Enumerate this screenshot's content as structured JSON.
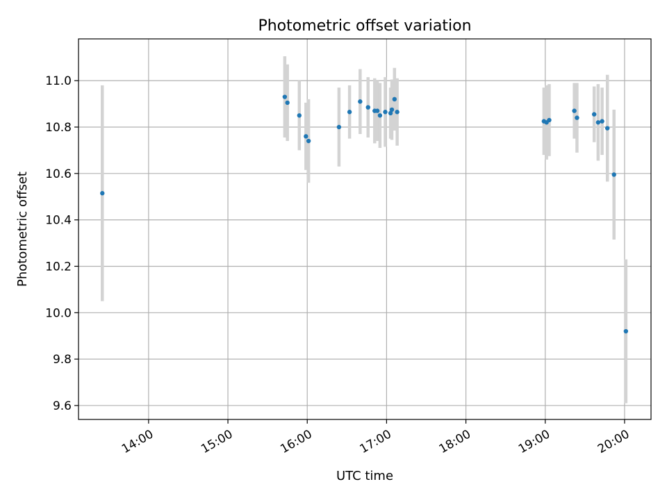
{
  "chart_data": {
    "type": "scatter",
    "title": "Photometric offset variation",
    "xlabel": "UTC time",
    "ylabel": "Photometric offset",
    "x_ticks": [
      "14:00",
      "15:00",
      "16:00",
      "17:00",
      "18:00",
      "19:00",
      "20:00"
    ],
    "y_ticks": [
      "9.6",
      "9.8",
      "10.0",
      "10.2",
      "10.4",
      "10.6",
      "10.8",
      "11.0"
    ],
    "xlim": [
      "13:07",
      "20:20"
    ],
    "ylim": [
      9.54,
      11.18
    ],
    "grid": true,
    "point_color": "#1f77b4",
    "errorbar_color": "#d3d3d3",
    "points": [
      {
        "t": "13:25",
        "y": 10.515,
        "err": 0.465
      },
      {
        "t": "15:43",
        "y": 10.93,
        "err": 0.175
      },
      {
        "t": "15:45",
        "y": 10.905,
        "err": 0.165
      },
      {
        "t": "15:54",
        "y": 10.85,
        "err": 0.15
      },
      {
        "t": "15:59",
        "y": 10.76,
        "err": 0.145
      },
      {
        "t": "16:01",
        "y": 10.74,
        "err": 0.18
      },
      {
        "t": "16:24",
        "y": 10.8,
        "err": 0.17
      },
      {
        "t": "16:32",
        "y": 10.865,
        "err": 0.115
      },
      {
        "t": "16:40",
        "y": 10.91,
        "err": 0.14
      },
      {
        "t": "16:46",
        "y": 10.885,
        "err": 0.13
      },
      {
        "t": "16:51",
        "y": 10.87,
        "err": 0.14
      },
      {
        "t": "16:53",
        "y": 10.87,
        "err": 0.13
      },
      {
        "t": "16:55",
        "y": 10.85,
        "err": 0.14
      },
      {
        "t": "16:59",
        "y": 10.865,
        "err": 0.15
      },
      {
        "t": "17:03",
        "y": 10.86,
        "err": 0.11
      },
      {
        "t": "17:04",
        "y": 10.875,
        "err": 0.13
      },
      {
        "t": "17:06",
        "y": 10.92,
        "err": 0.135
      },
      {
        "t": "17:08",
        "y": 10.865,
        "err": 0.145
      },
      {
        "t": "18:59",
        "y": 10.825,
        "err": 0.145
      },
      {
        "t": "19:01",
        "y": 10.82,
        "err": 0.16
      },
      {
        "t": "19:03",
        "y": 10.83,
        "err": 0.155
      },
      {
        "t": "19:22",
        "y": 10.87,
        "err": 0.12
      },
      {
        "t": "19:24",
        "y": 10.84,
        "err": 0.15
      },
      {
        "t": "19:37",
        "y": 10.855,
        "err": 0.12
      },
      {
        "t": "19:40",
        "y": 10.82,
        "err": 0.165
      },
      {
        "t": "19:43",
        "y": 10.825,
        "err": 0.145
      },
      {
        "t": "19:47",
        "y": 10.795,
        "err": 0.23
      },
      {
        "t": "19:52",
        "y": 10.595,
        "err": 0.28
      },
      {
        "t": "20:01",
        "y": 9.92,
        "err": 0.31
      }
    ]
  }
}
